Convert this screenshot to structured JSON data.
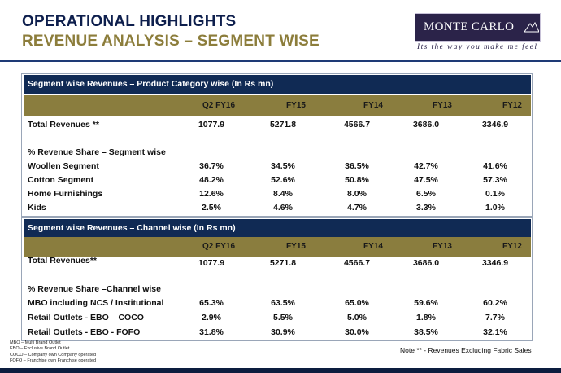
{
  "header": {
    "title": "OPERATIONAL HIGHLIGHTS",
    "subtitle": "REVENUE ANALYSIS – SEGMENT WISE",
    "logo_text": "MONTE CARLO",
    "tagline": "Its the way you make me feel"
  },
  "columns": [
    "Q2 FY16",
    "FY15",
    "FY14",
    "FY13",
    "FY12"
  ],
  "product_table": {
    "title": "Segment wise Revenues – Product Category wise (In Rs mn)",
    "total_label": "Total Revenues **",
    "total_values": [
      "1077.9",
      "5271.8",
      "4566.7",
      "3686.0",
      "3346.9"
    ],
    "share_heading": "% Revenue Share – Segment wise",
    "rows": [
      {
        "label": "Woollen Segment",
        "values": [
          "36.7%",
          "34.5%",
          "36.5%",
          "42.7%",
          "41.6%"
        ]
      },
      {
        "label": "Cotton Segment",
        "values": [
          "48.2%",
          "52.6%",
          "50.8%",
          "47.5%",
          "57.3%"
        ]
      },
      {
        "label": "Home Furnishings",
        "values": [
          "12.6%",
          "8.4%",
          "8.0%",
          "6.5%",
          "0.1%"
        ]
      },
      {
        "label": "Kids",
        "values": [
          "2.5%",
          "4.6%",
          "4.7%",
          "3.3%",
          "1.0%"
        ]
      }
    ]
  },
  "channel_table": {
    "title": "Segment wise Revenues – Channel wise (In Rs mn)",
    "total_label": "Total Revenues**",
    "total_values": [
      "1077.9",
      "5271.8",
      "4566.7",
      "3686.0",
      "3346.9"
    ],
    "share_heading": "% Revenue Share –Channel wise",
    "rows": [
      {
        "label": "MBO including NCS / Institutional",
        "values": [
          "65.3%",
          "63.5%",
          "65.0%",
          "59.6%",
          "60.2%"
        ]
      },
      {
        "label": "Retail Outlets - EBO – COCO",
        "values": [
          "2.9%",
          "5.5%",
          "5.0%",
          "1.8%",
          "7.7%"
        ]
      },
      {
        "label": "Retail Outlets - EBO - FOFO",
        "values": [
          "31.8%",
          "30.9%",
          "30.0%",
          "38.5%",
          "32.1%"
        ]
      }
    ]
  },
  "footnotes": [
    "MBO – Multi Brand Outlet",
    "EBO – Exclusive Brand Outlet",
    "COCO – Company own Company operated",
    "FOFO – Franchise own Franchise operated"
  ],
  "note": "Note ** - Revenues Excluding Fabric Sales"
}
